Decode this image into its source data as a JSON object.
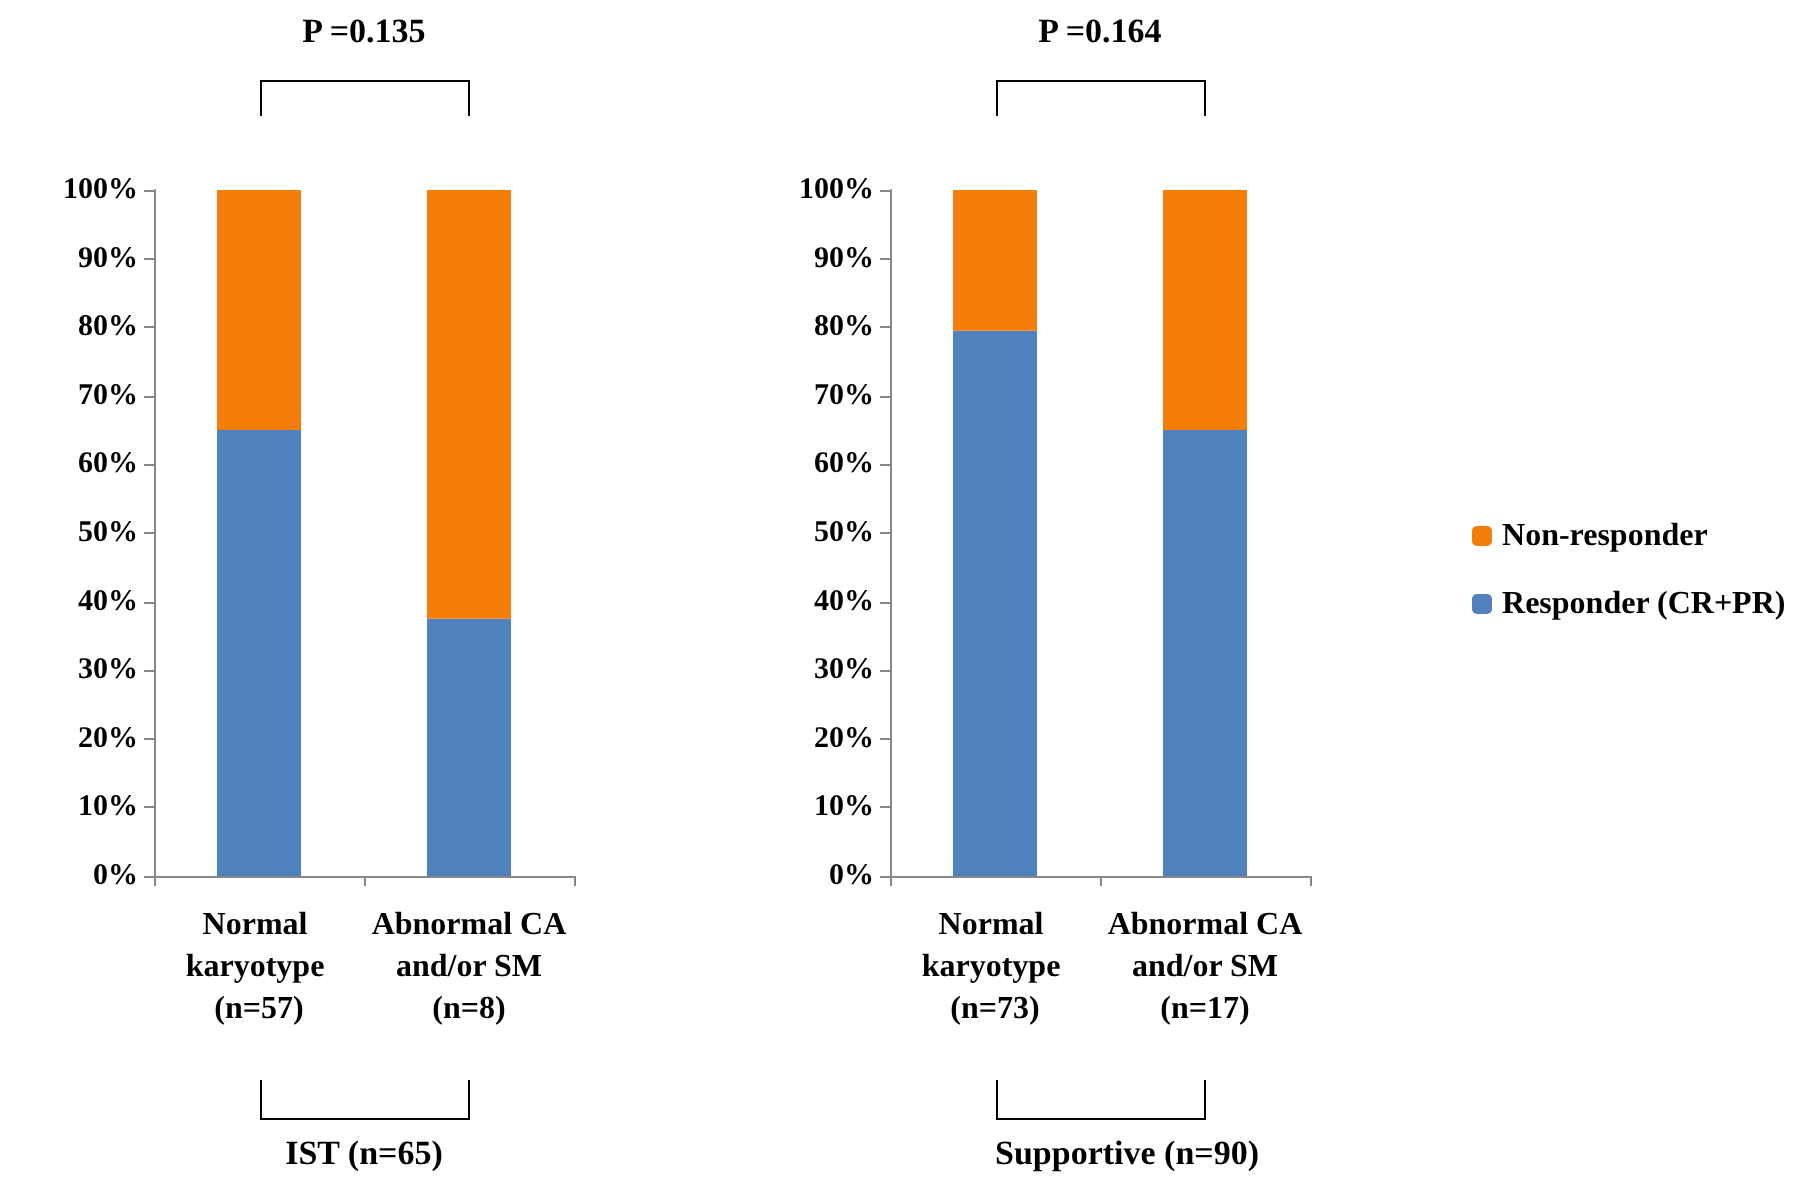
{
  "chart_data": [
    {
      "type": "bar",
      "stacked": true,
      "categories": [
        "Normal karyotype (n=57)",
        "Abnormal CA and/or SM (n=8)"
      ],
      "series": [
        {
          "color": "#4f81bd",
          "values": [
            65,
            37.5
          ]
        },
        {
          "color": "#f57d0a",
          "values": [
            35,
            62.5
          ]
        }
      ],
      "ylim": [
        0,
        100
      ],
      "yticks": [
        {
          "value": 0,
          "label": "0%"
        },
        {
          "value": 10,
          "label": "10%"
        },
        {
          "value": 20,
          "label": "20%"
        },
        {
          "value": 30,
          "label": "30%"
        },
        {
          "value": 40,
          "label": "40%"
        },
        {
          "value": 50,
          "label": "50%"
        },
        {
          "value": 60,
          "label": "60%"
        },
        {
          "value": 70,
          "label": "70%"
        },
        {
          "value": 80,
          "label": "80%"
        },
        {
          "value": 90,
          "label": "90%"
        },
        {
          "value": 100,
          "label": "100%"
        }
      ],
      "grid": false,
      "legend": false,
      "annotations": [
        "P =0.135",
        "IST (n=65)"
      ]
    },
    {
      "type": "bar",
      "stacked": true,
      "categories": [
        "Normal karyotype (n=73)",
        "Abnormal CA and/or SM (n=17)"
      ],
      "series": [
        {
          "name": "Responder (CR+PR)",
          "color": "#4f81bd",
          "values": [
            79.5,
            65
          ]
        },
        {
          "name": "Non-responder",
          "color": "#f57d0a",
          "values": [
            20.5,
            35
          ]
        }
      ],
      "ylim": [
        0,
        100
      ],
      "yticks": [
        {
          "value": 0,
          "label": "0%"
        },
        {
          "value": 10,
          "label": "10%"
        },
        {
          "value": 20,
          "label": "20%"
        },
        {
          "value": 30,
          "label": "30%"
        },
        {
          "value": 40,
          "label": "40%"
        },
        {
          "value": 50,
          "label": "50%"
        },
        {
          "value": 60,
          "label": "60%"
        },
        {
          "value": 70,
          "label": "70%"
        },
        {
          "value": 80,
          "label": "80%"
        },
        {
          "value": 90,
          "label": "90%"
        },
        {
          "value": 100,
          "label": "100%"
        }
      ],
      "grid": false,
      "legend": "right",
      "annotations": [
        "P =0.164",
        "Supportive (n=90)"
      ]
    }
  ]
}
